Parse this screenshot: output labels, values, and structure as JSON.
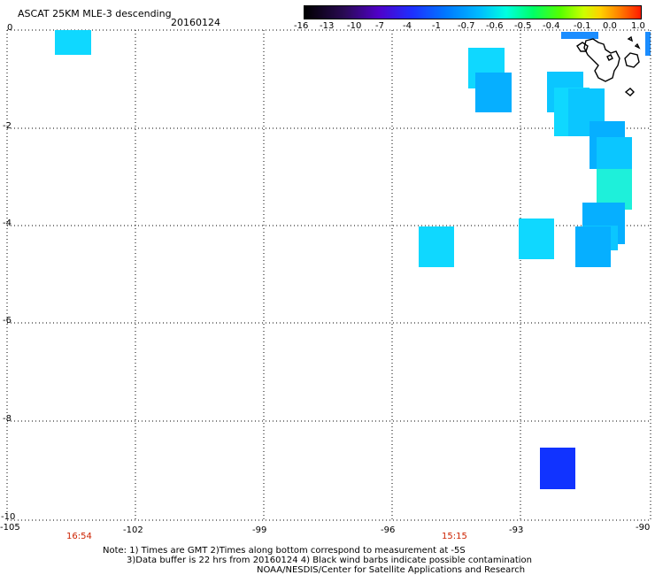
{
  "header": {
    "title": "ASCAT 25KM MLE-3 descending",
    "date": "20160124"
  },
  "colorbar": {
    "labels": [
      "-16",
      "-13",
      "-10",
      "-7",
      "-4",
      "-1",
      "-0.7",
      "-0.6",
      "-0.5",
      "-0.4",
      "-0.1",
      "0.0",
      "1.0"
    ],
    "colors": [
      "#000000",
      "#3a0a6a",
      "#4d00cc",
      "#1e2fff",
      "#0080ff",
      "#00c8ff",
      "#00ffe0",
      "#00ff66",
      "#55ff00",
      "#ccff00",
      "#ffd000",
      "#ff7a00",
      "#ff1a00"
    ]
  },
  "axes": {
    "y_labels": [
      "0",
      "-2",
      "-4",
      "-6",
      "-8",
      "-10"
    ],
    "x_labels": [
      "-105",
      "-102",
      "-99",
      "-96",
      "-93",
      "-90"
    ]
  },
  "times": [
    "16:54",
    "15:15"
  ],
  "notes": [
    "Note: 1) Times are GMT 2)Times along bottom correspond to measurement at -5S",
    "3)Data buffer is 22 hrs from 20160124 4) Black wind barbs indicate possible contamination",
    "NOAA/NESDIS/Center for Satellite Applications and Research"
  ]
}
